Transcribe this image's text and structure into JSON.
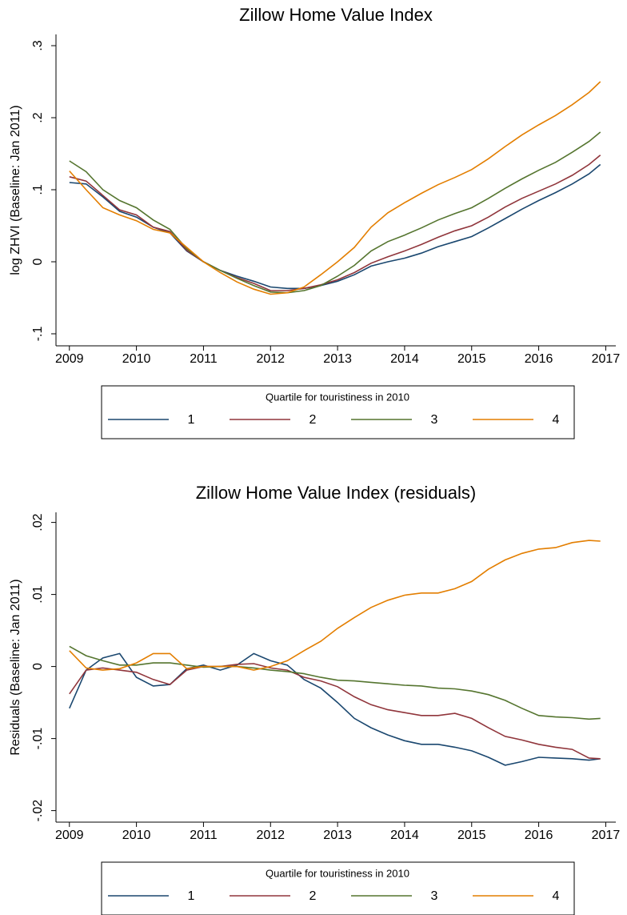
{
  "chart_data": [
    {
      "type": "line",
      "title": "Zillow Home Value Index",
      "ylabel": "log ZHVI (Baseline: Jan 2011)",
      "legend_title": "Quartile for touristiness in 2010",
      "x": [
        2009,
        2009.25,
        2009.5,
        2009.75,
        2010,
        2010.25,
        2010.5,
        2010.75,
        2011,
        2011.25,
        2011.5,
        2011.75,
        2012,
        2012.25,
        2012.5,
        2012.75,
        2013,
        2013.25,
        2013.5,
        2013.75,
        2014,
        2014.25,
        2014.5,
        2014.75,
        2015,
        2015.25,
        2015.5,
        2015.75,
        2016,
        2016.25,
        2016.5,
        2016.75,
        2016.92
      ],
      "series": [
        {
          "name": "1",
          "color": "#1a476f",
          "values": [
            0.11,
            0.108,
            0.09,
            0.07,
            0.062,
            0.048,
            0.04,
            0.015,
            0.0,
            -0.012,
            -0.02,
            -0.027,
            -0.035,
            -0.037,
            -0.037,
            -0.033,
            -0.027,
            -0.018,
            -0.006,
            0.0,
            0.005,
            0.012,
            0.021,
            0.028,
            0.035,
            0.047,
            0.06,
            0.073,
            0.085,
            0.096,
            0.108,
            0.122,
            0.135
          ]
        },
        {
          "name": "2",
          "color": "#90353b",
          "values": [
            0.118,
            0.112,
            0.092,
            0.072,
            0.065,
            0.048,
            0.042,
            0.016,
            0.0,
            -0.012,
            -0.022,
            -0.03,
            -0.04,
            -0.04,
            -0.037,
            -0.032,
            -0.025,
            -0.015,
            -0.002,
            0.007,
            0.015,
            0.024,
            0.034,
            0.043,
            0.05,
            0.062,
            0.076,
            0.088,
            0.098,
            0.108,
            0.12,
            0.135,
            0.148
          ]
        },
        {
          "name": "3",
          "color": "#55752f",
          "values": [
            0.14,
            0.125,
            0.1,
            0.085,
            0.075,
            0.058,
            0.045,
            0.018,
            0.0,
            -0.012,
            -0.023,
            -0.033,
            -0.042,
            -0.043,
            -0.04,
            -0.033,
            -0.02,
            -0.005,
            0.015,
            0.028,
            0.037,
            0.047,
            0.058,
            0.067,
            0.075,
            0.088,
            0.102,
            0.115,
            0.127,
            0.138,
            0.152,
            0.167,
            0.18
          ]
        },
        {
          "name": "4",
          "color": "#e37e00",
          "values": [
            0.126,
            0.1,
            0.075,
            0.065,
            0.057,
            0.045,
            0.04,
            0.02,
            0.0,
            -0.015,
            -0.028,
            -0.038,
            -0.045,
            -0.043,
            -0.035,
            -0.018,
            0.0,
            0.02,
            0.048,
            0.068,
            0.082,
            0.095,
            0.107,
            0.117,
            0.128,
            0.143,
            0.16,
            0.176,
            0.19,
            0.203,
            0.218,
            0.235,
            0.25
          ]
        }
      ],
      "xlim": [
        2008.8,
        2017.15
      ],
      "xticks": [
        2009,
        2010,
        2011,
        2012,
        2013,
        2014,
        2015,
        2016,
        2017
      ],
      "ylim": [
        -0.1167,
        0.3156
      ],
      "yticks": [
        {
          "value": -0.1,
          "label": "-.1"
        },
        0,
        {
          "value": 0.1,
          "label": ".1"
        },
        {
          "value": 0.2,
          "label": ".2"
        },
        {
          "value": 0.3,
          "label": ".3"
        }
      ]
    },
    {
      "type": "line",
      "title": "Zillow Home Value Index (residuals)",
      "ylabel": "Residuals (Baseline: Jan 2011)",
      "legend_title": "Quartile for touristiness in 2010",
      "x": [
        2009,
        2009.25,
        2009.5,
        2009.75,
        2010,
        2010.25,
        2010.5,
        2010.75,
        2011,
        2011.25,
        2011.5,
        2011.75,
        2012,
        2012.25,
        2012.5,
        2012.75,
        2013,
        2013.25,
        2013.5,
        2013.75,
        2014,
        2014.25,
        2014.5,
        2014.75,
        2015,
        2015.25,
        2015.5,
        2015.75,
        2016,
        2016.25,
        2016.5,
        2016.75,
        2016.92
      ],
      "series": [
        {
          "name": "1",
          "color": "#1a476f",
          "values": [
            -0.0058,
            -0.0005,
            0.0012,
            0.0018,
            -0.0015,
            -0.0027,
            -0.0025,
            -0.0003,
            0.0002,
            -0.0005,
            0.0002,
            0.0018,
            0.0008,
            0.0002,
            -0.0018,
            -0.003,
            -0.005,
            -0.0072,
            -0.0085,
            -0.0095,
            -0.0103,
            -0.0108,
            -0.0108,
            -0.0112,
            -0.0117,
            -0.0126,
            -0.0137,
            -0.0132,
            -0.0126,
            -0.0127,
            -0.0128,
            -0.013,
            -0.0128
          ]
        },
        {
          "name": "2",
          "color": "#90353b",
          "values": [
            -0.0038,
            -0.0005,
            -0.0002,
            -0.0005,
            -0.0008,
            -0.0018,
            -0.0025,
            -0.0005,
            0.0,
            0.0,
            0.0003,
            0.0004,
            -0.0002,
            -0.0005,
            -0.0015,
            -0.002,
            -0.0028,
            -0.0042,
            -0.0053,
            -0.006,
            -0.0064,
            -0.0068,
            -0.0068,
            -0.0065,
            -0.0072,
            -0.0085,
            -0.0097,
            -0.0102,
            -0.0108,
            -0.0112,
            -0.0115,
            -0.0127,
            -0.0128
          ]
        },
        {
          "name": "3",
          "color": "#55752f",
          "values": [
            0.0028,
            0.0015,
            0.0008,
            0.0002,
            0.0002,
            0.0005,
            0.0005,
            0.0002,
            -0.0001,
            0.0,
            0.0,
            -0.0002,
            -0.0005,
            -0.0007,
            -0.001,
            -0.0015,
            -0.0019,
            -0.002,
            -0.0022,
            -0.0024,
            -0.0026,
            -0.0027,
            -0.003,
            -0.0031,
            -0.0034,
            -0.0039,
            -0.0047,
            -0.0058,
            -0.0068,
            -0.007,
            -0.0071,
            -0.0073,
            -0.0072
          ]
        },
        {
          "name": "4",
          "color": "#e37e00",
          "values": [
            0.0022,
            -0.0002,
            -0.0005,
            -0.0003,
            0.0005,
            0.0018,
            0.0018,
            -0.0003,
            0.0,
            0.0,
            0.0,
            -0.0005,
            0.0,
            0.0008,
            0.0022,
            0.0035,
            0.0053,
            0.0068,
            0.0082,
            0.0092,
            0.0099,
            0.0102,
            0.0102,
            0.0108,
            0.0118,
            0.0135,
            0.0148,
            0.0157,
            0.0163,
            0.0165,
            0.0172,
            0.0175,
            0.0174
          ]
        }
      ],
      "xlim": [
        2008.8,
        2017.15
      ],
      "xticks": [
        2009,
        2010,
        2011,
        2012,
        2013,
        2014,
        2015,
        2016,
        2017
      ],
      "ylim": [
        -0.0216,
        0.0214
      ],
      "yticks": [
        {
          "value": -0.02,
          "label": "-.02"
        },
        {
          "value": -0.01,
          "label": "-.01"
        },
        0,
        {
          "value": 0.01,
          "label": ".01"
        },
        {
          "value": 0.02,
          "label": ".02"
        }
      ]
    }
  ]
}
